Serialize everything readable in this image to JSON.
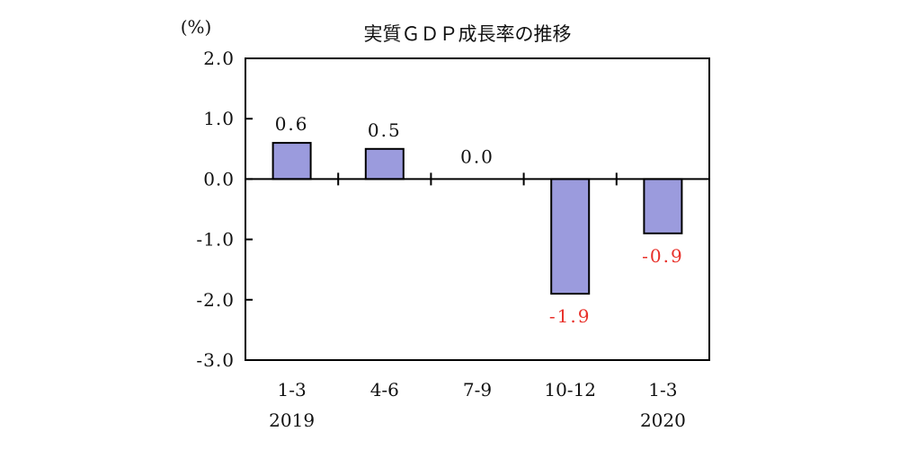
{
  "chart_data": {
    "type": "bar",
    "title": "実質ＧＤＰ成長率の推移",
    "unit_label": "(%)",
    "categories": [
      "1-3",
      "4-6",
      "7-9",
      "10-12",
      "1-3"
    ],
    "years": [
      "2019",
      "",
      "",
      "",
      "2020"
    ],
    "values": [
      0.6,
      0.5,
      0.0,
      -1.9,
      -0.9
    ],
    "value_labels": [
      "0.6",
      "0.5",
      "0.0",
      "-1.9",
      "-0.9"
    ],
    "y_tick_labels": [
      "2.0",
      "1.0",
      "0.0",
      "-1.0",
      "-2.0",
      "-3.0"
    ],
    "y_tick_values": [
      2,
      1,
      0,
      -1,
      -2,
      -3
    ],
    "ylim": [
      -3,
      2
    ],
    "grid": false,
    "bar_color": "#9b9bdd",
    "negative_label_color": "#e8302a",
    "positive_label_color": "#111111"
  }
}
